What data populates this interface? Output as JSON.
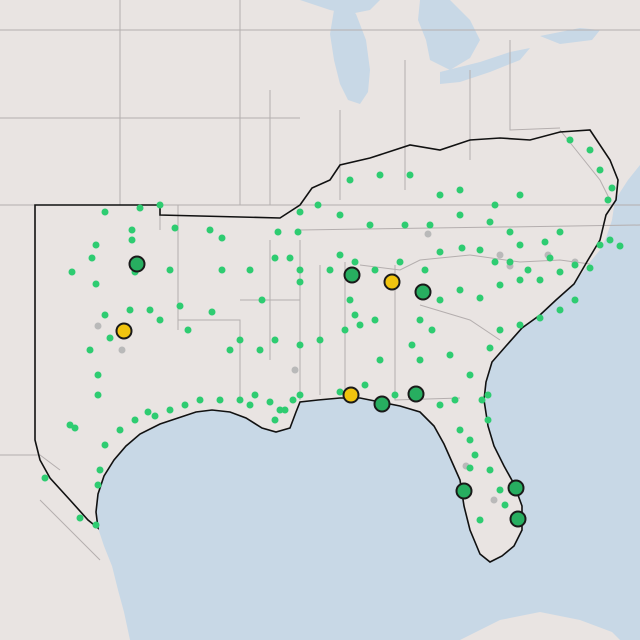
{
  "map": {
    "colors": {
      "water": "#c8d8e6",
      "land": "#e9e4e2",
      "state_line": "#b4aeae",
      "region_outline": "#111111",
      "station_small": "#2ecc71",
      "station_gray": "#b9b9b9",
      "station_large_green": "#27ae60",
      "station_large_yellow": "#f1c40f",
      "marker_stroke": "#1a1a1a"
    },
    "large_markers": [
      {
        "status": "green",
        "lon": -96.8,
        "lat": 36.0
      },
      {
        "status": "yellow",
        "lon": -97.9,
        "lat": 33.2
      },
      {
        "status": "green",
        "lon": -86.9,
        "lat": 35.3
      },
      {
        "status": "yellow",
        "lon": -85.0,
        "lat": 35.1
      },
      {
        "status": "green",
        "lon": -83.4,
        "lat": 34.8
      },
      {
        "status": "yellow",
        "lon": -86.9,
        "lat": 30.6
      },
      {
        "status": "green",
        "lon": -85.4,
        "lat": 30.4
      },
      {
        "status": "green",
        "lon": -83.6,
        "lat": 30.6
      },
      {
        "status": "green",
        "lon": -81.9,
        "lat": 27.2
      },
      {
        "status": "green",
        "lon": -79.6,
        "lat": 27.3
      },
      {
        "status": "green",
        "lon": -79.6,
        "lat": 26.2
      }
    ]
  }
}
